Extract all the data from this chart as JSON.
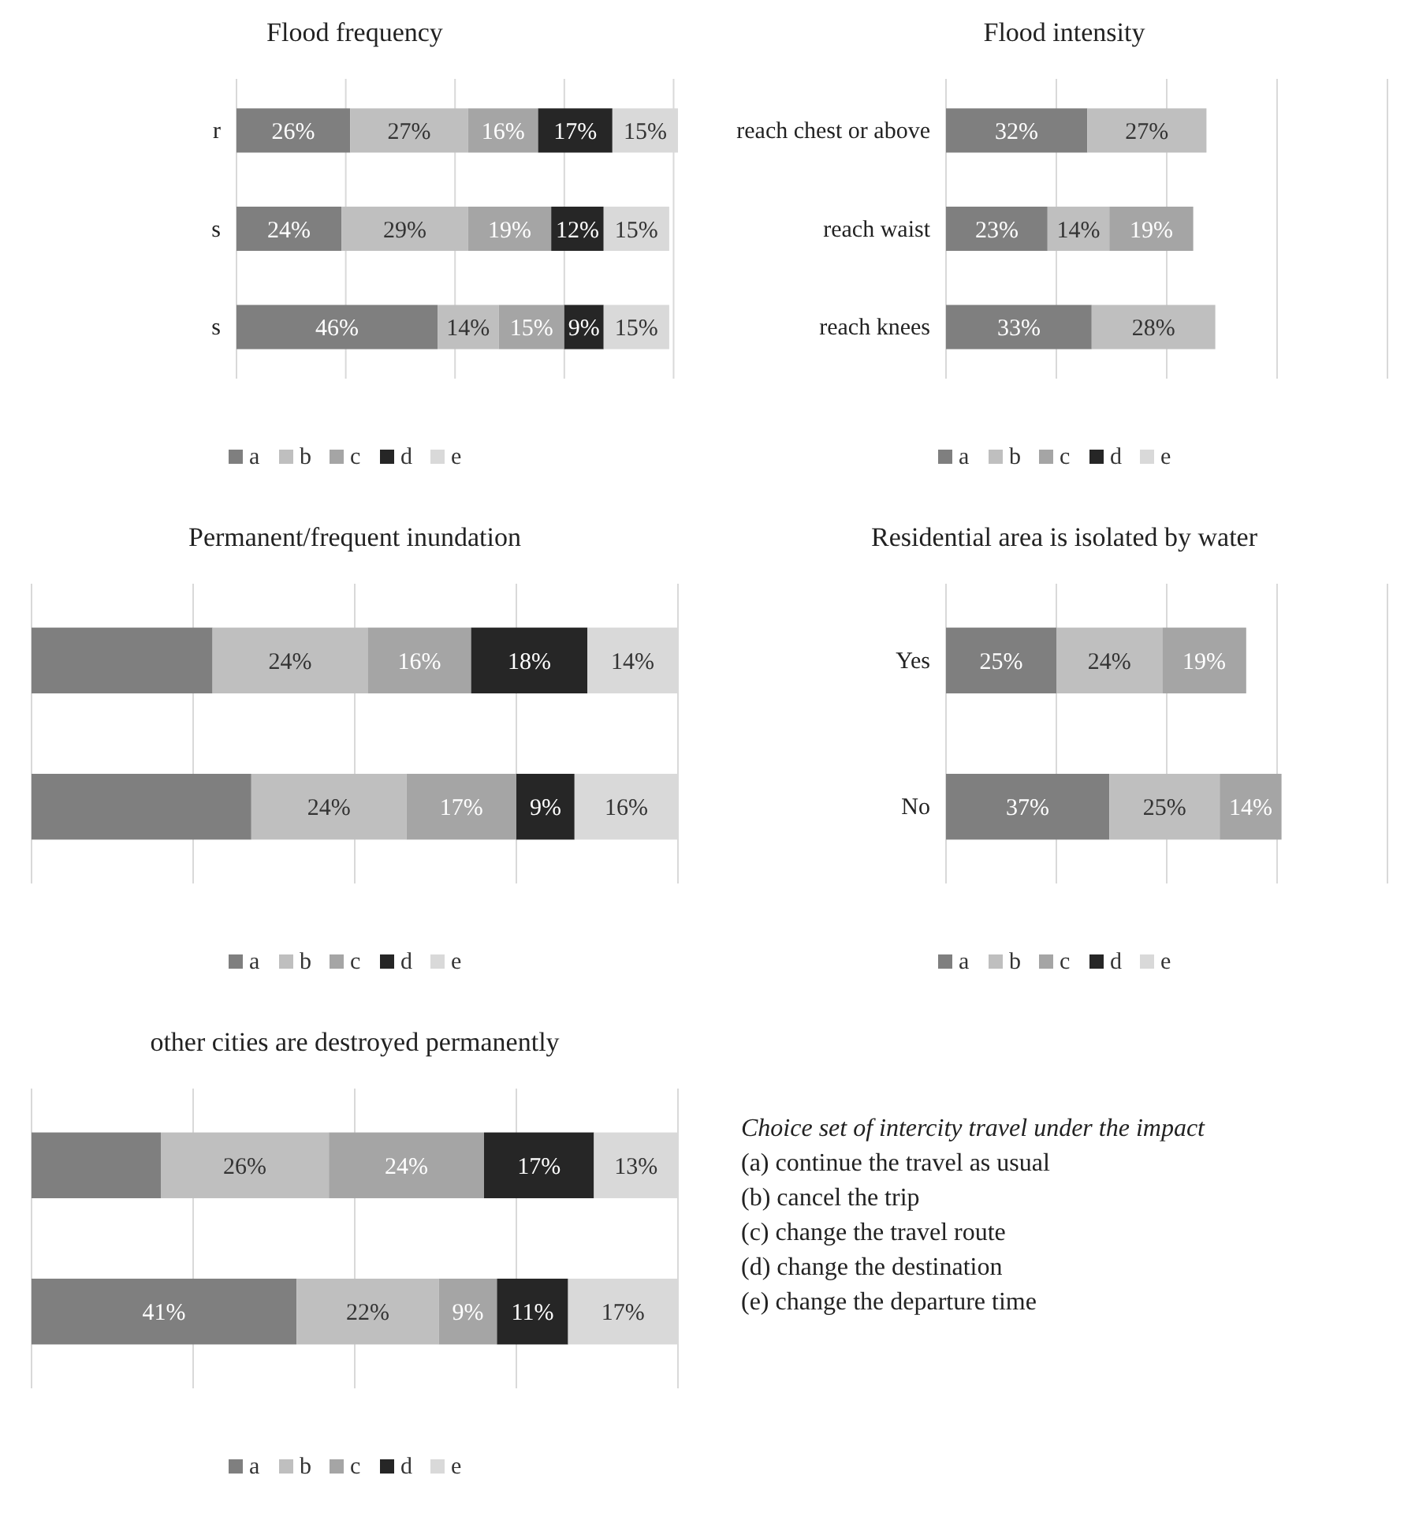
{
  "chart_data": [
    {
      "type": "bar",
      "orientation": "horizontal",
      "stacked": true,
      "title": "Flood frequency",
      "categories": [
        "r",
        "s",
        "s"
      ],
      "xlim": [
        0,
        101
      ],
      "xticks": [
        {
          "value": 0,
          "label": null
        },
        {
          "value": 25,
          "label": null
        },
        {
          "value": 50,
          "label": null
        },
        {
          "value": 75,
          "label": null
        },
        {
          "value": 100,
          "label": null
        }
      ],
      "tick_labels": "y",
      "grid": "x",
      "legend": "bottom",
      "series": [
        {
          "name": "a",
          "color": "#7f7f7f",
          "values": [
            26,
            24,
            46
          ],
          "value_labels": [
            "26%",
            "24%",
            "46%"
          ]
        },
        {
          "name": "b",
          "color": "#bfbfbf",
          "values": [
            27,
            29,
            14
          ],
          "value_labels": [
            "27%",
            "29%",
            "14%"
          ]
        },
        {
          "name": "c",
          "color": "#a5a5a5",
          "values": [
            16,
            19,
            15
          ],
          "value_labels": [
            "16%",
            "19%",
            "15%"
          ]
        },
        {
          "name": "d",
          "color": "#262626",
          "values": [
            17,
            12,
            9
          ],
          "value_labels": [
            "17%",
            "12%",
            "9%"
          ]
        },
        {
          "name": "e",
          "color": "#d9d9d9",
          "values": [
            15,
            15,
            15
          ],
          "value_labels": [
            "15%",
            "15%",
            "15%"
          ]
        }
      ]
    },
    {
      "type": "bar",
      "orientation": "horizontal",
      "stacked": true,
      "title": "Flood intensity",
      "categories": [
        "reach chest or above",
        "reach waist",
        "reach knees"
      ],
      "xlim": [
        0,
        100
      ],
      "xticks": [
        {
          "value": 0,
          "label": null
        },
        {
          "value": 25,
          "label": null
        },
        {
          "value": 50,
          "label": null
        },
        {
          "value": 75,
          "label": null
        },
        {
          "value": 100,
          "label": null
        }
      ],
      "tick_labels": "y",
      "grid": "x",
      "legend": "bottom",
      "series": [
        {
          "name": "a",
          "color": "#7f7f7f",
          "values": [
            32,
            23,
            33
          ],
          "value_labels": [
            "32%",
            "23%",
            "33%"
          ]
        },
        {
          "name": "b",
          "color": "#bfbfbf",
          "values": [
            27,
            14,
            28
          ],
          "value_labels": [
            "27%",
            "14%",
            "28%"
          ]
        },
        {
          "name": "c",
          "color": "#a5a5a5",
          "values": [
            null,
            19,
            null
          ],
          "value_labels": [
            null,
            "19%",
            null
          ]
        },
        {
          "name": "d",
          "color": "#262626",
          "values": [
            null,
            null,
            null
          ],
          "value_labels": [
            null,
            null,
            null
          ]
        },
        {
          "name": "e",
          "color": "#d9d9d9",
          "values": [
            null,
            null,
            null
          ],
          "value_labels": [
            null,
            null,
            null
          ]
        }
      ]
    },
    {
      "type": "bar",
      "orientation": "horizontal",
      "stacked": true,
      "title": "Permanent/frequent inundation",
      "categories": [
        null,
        null
      ],
      "xlim": [
        0,
        100
      ],
      "xticks": [
        {
          "value": 0,
          "label": null
        },
        {
          "value": 25,
          "label": null
        },
        {
          "value": 50,
          "label": null
        },
        {
          "value": 75,
          "label": null
        },
        {
          "value": 100,
          "label": null
        }
      ],
      "tick_labels": "y",
      "grid": "x",
      "legend": "bottom",
      "series": [
        {
          "name": "a",
          "color": "#7f7f7f",
          "values": [
            28,
            34
          ],
          "value_labels": [
            null,
            null
          ]
        },
        {
          "name": "b",
          "color": "#bfbfbf",
          "values": [
            24,
            24
          ],
          "value_labels": [
            "24%",
            "24%"
          ]
        },
        {
          "name": "c",
          "color": "#a5a5a5",
          "values": [
            16,
            17
          ],
          "value_labels": [
            "16%",
            "17%"
          ]
        },
        {
          "name": "d",
          "color": "#262626",
          "values": [
            18,
            9
          ],
          "value_labels": [
            "18%",
            "9%"
          ]
        },
        {
          "name": "e",
          "color": "#d9d9d9",
          "values": [
            14,
            16
          ],
          "value_labels": [
            "14%",
            "16%"
          ]
        }
      ]
    },
    {
      "type": "bar",
      "orientation": "horizontal",
      "stacked": true,
      "title": "Residential area is isolated by water",
      "categories": [
        "Yes",
        "No"
      ],
      "xlim": [
        0,
        100
      ],
      "xticks": [
        {
          "value": 0,
          "label": null
        },
        {
          "value": 25,
          "label": null
        },
        {
          "value": 50,
          "label": null
        },
        {
          "value": 75,
          "label": null
        },
        {
          "value": 100,
          "label": null
        }
      ],
      "tick_labels": "y",
      "grid": "x",
      "legend": "bottom",
      "series": [
        {
          "name": "a",
          "color": "#7f7f7f",
          "values": [
            25,
            37
          ],
          "value_labels": [
            "25%",
            "37%"
          ]
        },
        {
          "name": "b",
          "color": "#bfbfbf",
          "values": [
            24,
            25
          ],
          "value_labels": [
            "24%",
            "25%"
          ]
        },
        {
          "name": "c",
          "color": "#a5a5a5",
          "values": [
            19,
            14
          ],
          "value_labels": [
            "19%",
            "14%"
          ]
        },
        {
          "name": "d",
          "color": "#262626",
          "values": [
            null,
            null
          ],
          "value_labels": [
            null,
            null
          ]
        },
        {
          "name": "e",
          "color": "#d9d9d9",
          "values": [
            null,
            null
          ],
          "value_labels": [
            null,
            null
          ]
        }
      ]
    },
    {
      "type": "bar",
      "orientation": "horizontal",
      "stacked": true,
      "title": "other cities are destroyed permanently",
      "categories": [
        null,
        null
      ],
      "xlim": [
        0,
        100
      ],
      "xticks": [
        {
          "value": 0,
          "label": null
        },
        {
          "value": 25,
          "label": null
        },
        {
          "value": 50,
          "label": null
        },
        {
          "value": 75,
          "label": null
        },
        {
          "value": 100,
          "label": null
        }
      ],
      "tick_labels": "y",
      "grid": "x",
      "legend": "bottom",
      "series": [
        {
          "name": "a",
          "color": "#7f7f7f",
          "values": [
            20,
            41
          ],
          "value_labels": [
            null,
            "41%"
          ]
        },
        {
          "name": "b",
          "color": "#bfbfbf",
          "values": [
            26,
            22
          ],
          "value_labels": [
            "26%",
            "22%"
          ]
        },
        {
          "name": "c",
          "color": "#a5a5a5",
          "values": [
            24,
            9
          ],
          "value_labels": [
            "24%",
            "9%"
          ]
        },
        {
          "name": "d",
          "color": "#262626",
          "values": [
            17,
            11
          ],
          "value_labels": [
            "17%",
            "11%"
          ]
        },
        {
          "name": "e",
          "color": "#d9d9d9",
          "values": [
            13,
            17
          ],
          "value_labels": [
            "13%",
            "17%"
          ]
        }
      ]
    },
    {
      "type": "other",
      "annotations": [
        "Choice set of intercity travel under the impact",
        "(a) continue the travel as usual",
        "(b) cancel the trip",
        "(c) change the travel route",
        "(d) change the destination",
        "(e) change the departure time"
      ]
    }
  ]
}
